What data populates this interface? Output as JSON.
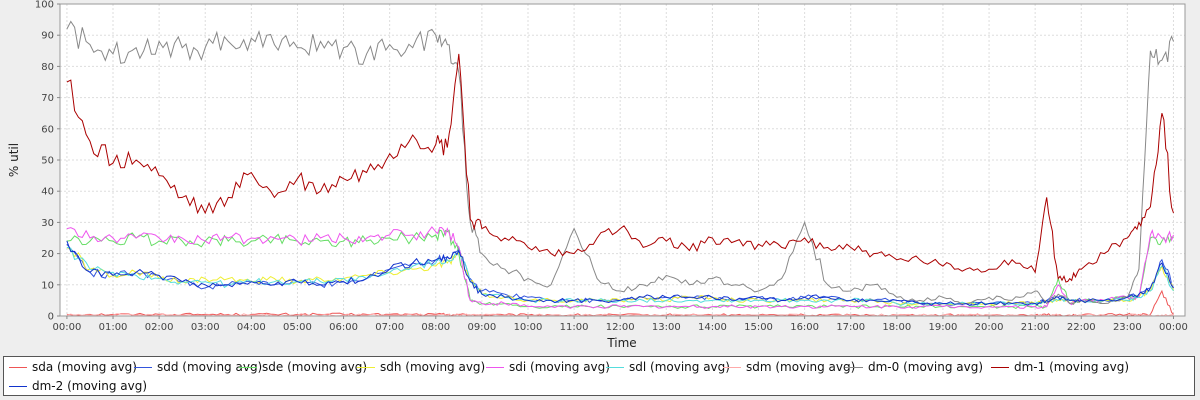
{
  "chart_data": {
    "type": "line",
    "xlabel": "Time",
    "ylabel": "% util",
    "ylim": [
      0,
      100
    ],
    "yticks": [
      0,
      10,
      20,
      30,
      40,
      50,
      60,
      70,
      80,
      90,
      100
    ],
    "x_tick_labels": [
      "00:00",
      "01:00",
      "02:00",
      "03:00",
      "04:00",
      "05:00",
      "06:00",
      "07:00",
      "08:00",
      "09:00",
      "10:00",
      "11:00",
      "12:00",
      "13:00",
      "14:00",
      "15:00",
      "16:00",
      "17:00",
      "18:00",
      "19:00",
      "20:00",
      "21:00",
      "22:00",
      "23:00",
      "00:00"
    ],
    "xlim_hours": [
      -0.15,
      24.25
    ],
    "grid": true,
    "legend_position": "bottom",
    "x_hours": [
      0,
      0.5,
      1,
      1.5,
      2,
      2.5,
      3,
      3.5,
      4,
      4.5,
      5,
      5.5,
      6,
      6.5,
      7,
      7.5,
      8,
      8.25,
      8.5,
      8.75,
      9,
      9.5,
      10,
      10.5,
      11,
      11.5,
      12,
      12.5,
      13,
      13.5,
      14,
      14.5,
      15,
      15.5,
      16,
      16.5,
      17,
      17.5,
      18,
      18.5,
      19,
      19.5,
      20,
      20.5,
      21,
      21.25,
      21.5,
      21.75,
      22,
      22.5,
      23,
      23.25,
      23.5,
      23.75,
      24
    ],
    "series": [
      {
        "name": "sda (moving avg)",
        "color": "#ee5555",
        "values": [
          0.5,
          0.5,
          0.5,
          0.5,
          0.5,
          0.5,
          0.5,
          0.5,
          0.5,
          0.5,
          0.5,
          0.5,
          0.5,
          0.5,
          0.5,
          0.5,
          0.5,
          0.5,
          0.5,
          0.3,
          0.3,
          0.3,
          0.3,
          0.3,
          0.3,
          0.3,
          0.3,
          0.3,
          0.3,
          0.3,
          0.3,
          0.3,
          0.3,
          0.3,
          0.3,
          0.3,
          0.3,
          0.3,
          0.3,
          0.3,
          0.3,
          0.3,
          0.3,
          0.3,
          0.3,
          0.3,
          0.3,
          0.3,
          0.3,
          0.3,
          0.5,
          0.5,
          0.5,
          8,
          0.5
        ]
      },
      {
        "name": "sdd (moving avg)",
        "color": "#3355dd",
        "values": [
          23,
          14,
          13,
          14,
          13,
          11,
          9,
          10,
          11,
          10,
          11,
          10,
          11,
          12,
          15,
          17,
          18,
          19,
          22,
          12,
          8,
          7,
          6,
          5,
          5,
          5,
          5,
          6,
          6,
          6,
          6,
          5,
          6,
          5,
          6,
          6,
          5,
          5,
          5,
          4,
          4,
          4,
          4,
          4,
          4,
          5,
          6,
          5,
          5,
          5,
          6,
          7,
          9,
          18,
          9
        ]
      },
      {
        "name": "sde (moving avg)",
        "color": "#66dd66",
        "values": [
          24,
          24,
          24,
          25,
          24,
          24,
          24,
          24,
          24,
          25,
          24,
          24,
          24,
          24,
          25,
          25,
          26,
          27,
          20,
          5,
          4,
          4,
          3,
          3,
          3,
          3,
          3,
          3,
          3,
          3,
          3,
          3,
          3,
          3,
          3,
          3,
          3,
          3,
          3,
          3,
          3,
          3,
          3,
          3,
          3,
          3,
          12,
          4,
          5,
          5,
          6,
          6,
          25,
          24,
          25
        ]
      },
      {
        "name": "sdh (moving avg)",
        "color": "#eeee33",
        "values": [
          22,
          15,
          13,
          14,
          12,
          11,
          12,
          12,
          11,
          12,
          11,
          12,
          12,
          13,
          14,
          15,
          16,
          17,
          20,
          11,
          7,
          6,
          5,
          5,
          5,
          5,
          5,
          6,
          5,
          6,
          6,
          5,
          5,
          5,
          5,
          5,
          5,
          5,
          4,
          4,
          4,
          4,
          4,
          4,
          4,
          5,
          5,
          5,
          5,
          5,
          5,
          6,
          8,
          16,
          8
        ]
      },
      {
        "name": "sdi (moving avg)",
        "color": "#ee55ee",
        "values": [
          28,
          25,
          25,
          25,
          25,
          25,
          24,
          25,
          25,
          25,
          24,
          25,
          25,
          25,
          26,
          26,
          27,
          28,
          22,
          5,
          4,
          4,
          3,
          3,
          3,
          3,
          3,
          3,
          3,
          3,
          3,
          3,
          3,
          3,
          3,
          3,
          3,
          3,
          3,
          3,
          3,
          3,
          3,
          3,
          3,
          3,
          10,
          4,
          5,
          5,
          6,
          6,
          26,
          25,
          26
        ]
      },
      {
        "name": "sdl (moving avg)",
        "color": "#55dddd",
        "values": [
          22,
          15,
          14,
          13,
          12,
          11,
          11,
          10,
          11,
          11,
          11,
          11,
          12,
          12,
          14,
          16,
          17,
          18,
          21,
          11,
          7,
          6,
          5,
          5,
          5,
          5,
          5,
          5,
          5,
          5,
          5,
          5,
          5,
          5,
          5,
          5,
          5,
          5,
          4,
          4,
          4,
          4,
          4,
          4,
          4,
          5,
          5,
          5,
          5,
          5,
          5,
          6,
          8,
          16,
          8
        ]
      },
      {
        "name": "sdm (moving avg)",
        "color": "#ffaaaa",
        "values": [
          0.3,
          0.3,
          0.3,
          0.3,
          0.3,
          0.3,
          0.3,
          0.3,
          0.3,
          0.3,
          0.3,
          0.3,
          0.3,
          0.3,
          0.3,
          0.3,
          0.3,
          0.3,
          0.3,
          0.2,
          0.2,
          0.2,
          0.2,
          0.2,
          0.2,
          0.2,
          0.2,
          0.2,
          0.2,
          0.2,
          0.2,
          0.2,
          0.2,
          0.2,
          0.2,
          0.2,
          0.2,
          0.2,
          0.2,
          0.2,
          0.2,
          0.2,
          0.2,
          0.2,
          0.2,
          0.2,
          0.2,
          0.2,
          0.2,
          0.2,
          0.2,
          0.3,
          0.3,
          0.3,
          0.3
        ]
      },
      {
        "name": "dm-0 (moving avg)",
        "color": "#888888",
        "values": [
          92,
          87,
          84,
          86,
          88,
          86,
          86,
          88,
          89,
          87,
          86,
          88,
          86,
          84,
          87,
          86,
          90,
          87,
          78,
          30,
          20,
          15,
          12,
          10,
          28,
          12,
          8,
          10,
          13,
          10,
          12,
          10,
          8,
          12,
          30,
          10,
          8,
          10,
          6,
          5,
          6,
          4,
          6,
          5,
          8,
          4,
          7,
          4,
          5,
          4,
          6,
          15,
          85,
          82,
          88
        ]
      },
      {
        "name": "dm-1 (moving avg)",
        "color": "#aa0000",
        "values": [
          75,
          56,
          49,
          50,
          45,
          38,
          33,
          38,
          46,
          38,
          44,
          40,
          44,
          46,
          52,
          58,
          55,
          54,
          84,
          31,
          28,
          25,
          22,
          20,
          20,
          25,
          28,
          22,
          24,
          21,
          25,
          24,
          23,
          22,
          25,
          22,
          22,
          20,
          18,
          18,
          16,
          15,
          15,
          18,
          14,
          38,
          12,
          12,
          15,
          20,
          25,
          30,
          35,
          65,
          33
        ]
      },
      {
        "name": "dm-2 (moving avg)",
        "color": "#1133cc",
        "values": [
          24,
          14,
          13,
          14,
          13,
          11,
          10,
          10,
          11,
          10,
          11,
          10,
          11,
          12,
          15,
          17,
          18,
          19,
          21,
          11,
          7,
          6,
          5,
          5,
          5,
          5,
          5,
          6,
          6,
          6,
          6,
          5,
          6,
          5,
          6,
          6,
          5,
          5,
          5,
          4,
          4,
          4,
          4,
          4,
          4,
          5,
          6,
          5,
          5,
          5,
          6,
          7,
          9,
          17,
          9
        ]
      }
    ]
  }
}
